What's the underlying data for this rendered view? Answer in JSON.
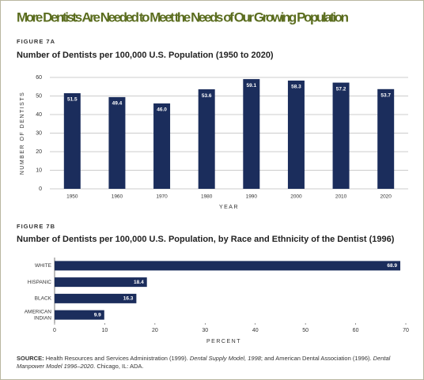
{
  "header": {
    "title": "More Dentists Are Needed to Meet the Needs of Our Growing Population"
  },
  "chart_data": [
    {
      "type": "bar",
      "label": "FIGURE 7A",
      "title": "Number of Dentists per 100,000 U.S. Population (1950 to 2020)",
      "categories": [
        "1950",
        "1960",
        "1970",
        "1980",
        "1990",
        "2000",
        "2010",
        "2020"
      ],
      "values": [
        51.5,
        49.4,
        46.0,
        53.6,
        59.1,
        58.3,
        57.2,
        53.7
      ],
      "value_labels": [
        "51.5",
        "49.4",
        "46.0",
        "53.6",
        "59.1",
        "58.3",
        "57.2",
        "53.7"
      ],
      "color": "#1b2d5c",
      "ylim": [
        0,
        60
      ],
      "yticks": [
        0,
        10,
        20,
        30,
        40,
        50,
        60
      ],
      "ylabel": "NUMBER OF DENTISTS",
      "xlabel": "YEAR",
      "grid": true
    },
    {
      "type": "barh",
      "label": "FIGURE 7B",
      "title": "Number of Dentists per 100,000 U.S. Population, by Race and Ethnicity of the Dentist (1996)",
      "categories": [
        "WHITE",
        "HISPANIC",
        "BLACK",
        "AMERICAN INDIAN"
      ],
      "values": [
        68.9,
        18.4,
        16.3,
        9.9
      ],
      "color": "#1b2d5c",
      "xlim": [
        0,
        70
      ],
      "xticks": [
        0,
        10,
        20,
        30,
        40,
        50,
        60,
        70
      ],
      "xlabel": "PERCENT",
      "grid": false
    }
  ],
  "source": {
    "label": "SOURCE:",
    "parts": [
      "Health Resources and Services Administration (1999). ",
      "Dental Supply Model, 1998",
      "; and American Dental Association (1996). ",
      "Dental Manpower Model 1996–2020",
      ". Chicago, IL: ADA."
    ]
  }
}
